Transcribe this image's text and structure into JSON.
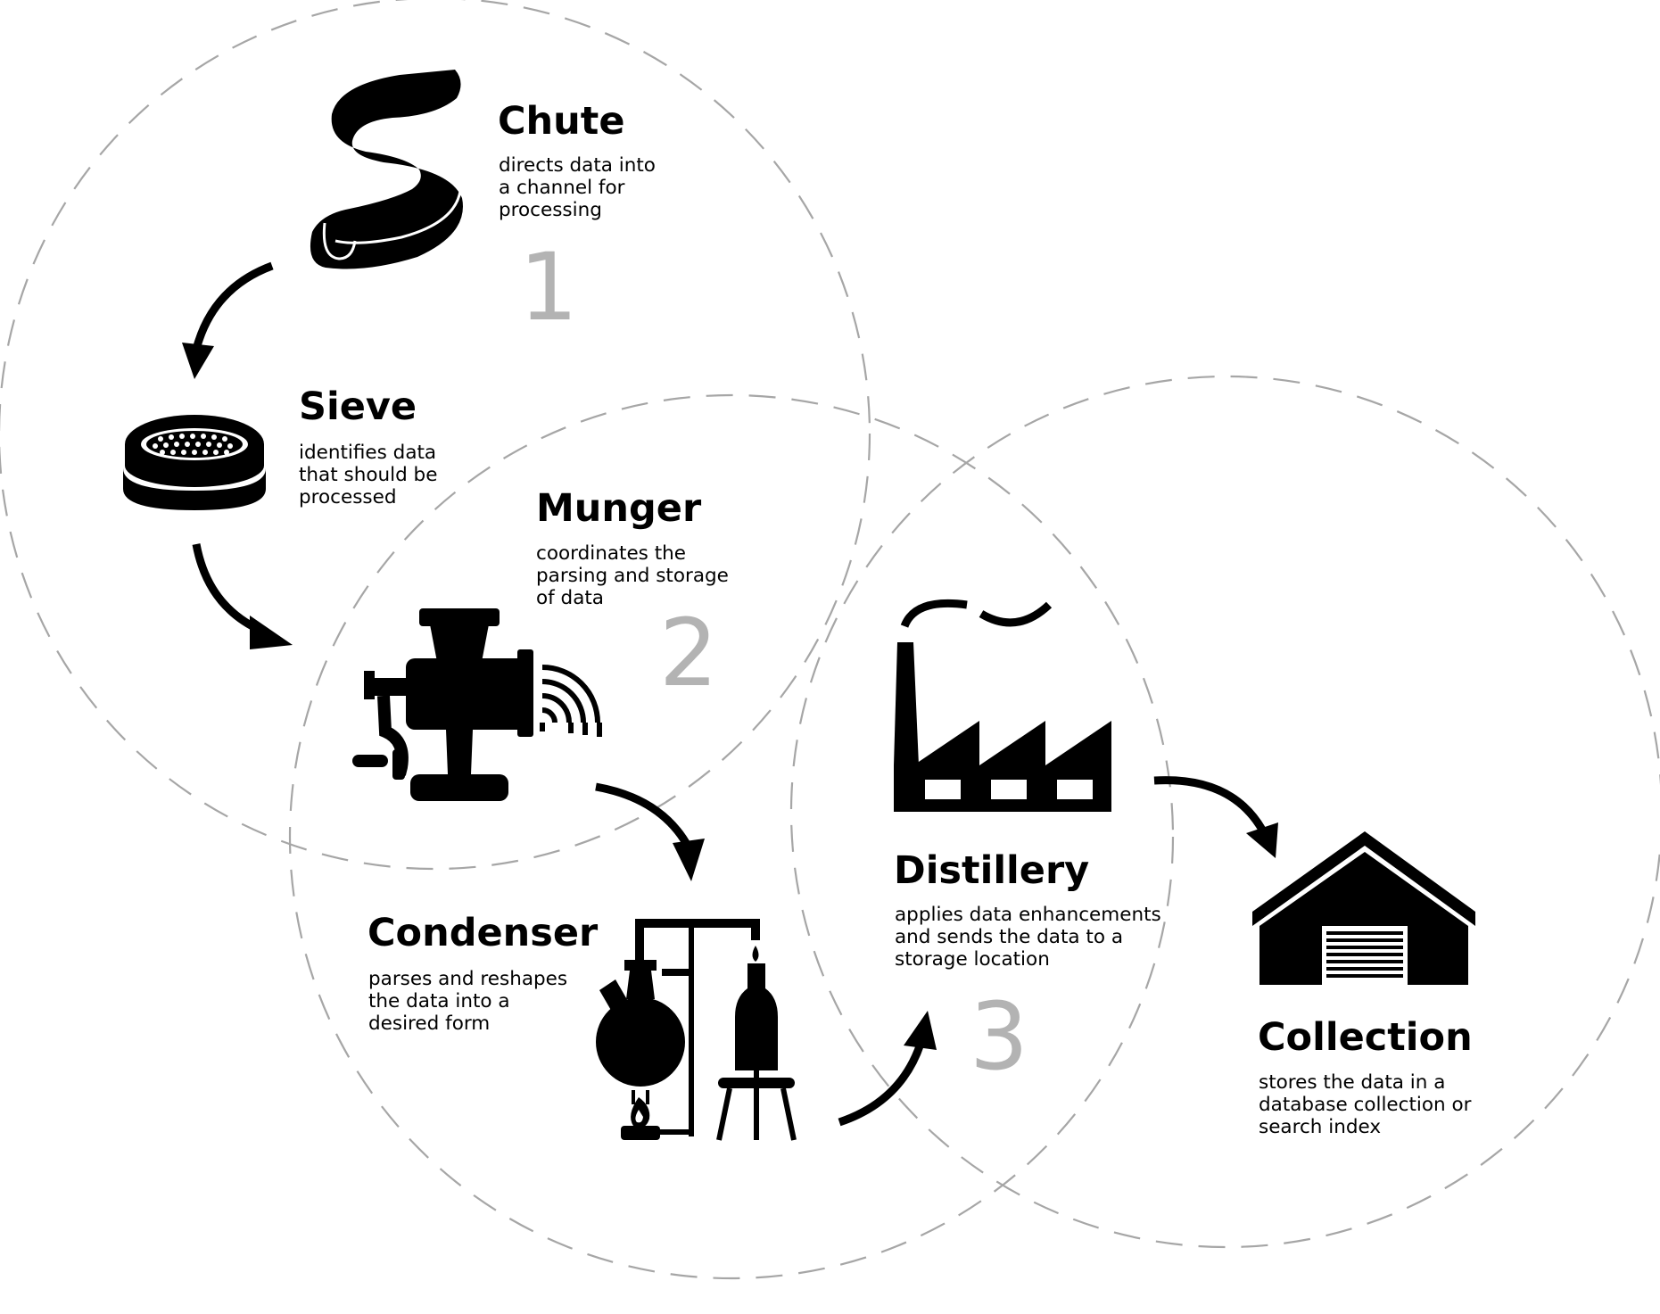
{
  "stages": [
    {
      "id": "chute",
      "title": "Chute",
      "desc": [
        "directs data into",
        "a channel for",
        "processing"
      ]
    },
    {
      "id": "sieve",
      "title": "Sieve",
      "desc": [
        "identifies data",
        "that should be",
        "processed"
      ]
    },
    {
      "id": "munger",
      "title": "Munger",
      "desc": [
        "coordinates the",
        "parsing and storage",
        "of data"
      ]
    },
    {
      "id": "condenser",
      "title": "Condenser",
      "desc": [
        "parses and reshapes",
        "the data into a",
        "desired form"
      ]
    },
    {
      "id": "distillery",
      "title": "Distillery",
      "desc": [
        "applies data enhancements",
        "and sends the data to a",
        "storage location"
      ]
    },
    {
      "id": "collection",
      "title": "Collection",
      "desc": [
        "stores the data in a",
        "database collection or",
        "search index"
      ]
    }
  ],
  "phases": [
    "1",
    "2",
    "3"
  ],
  "icons": {
    "chute": "chute-icon",
    "sieve": "sieve-icon",
    "munger": "meat-grinder-icon",
    "condenser": "distillation-apparatus-icon",
    "distillery": "factory-icon",
    "collection": "warehouse-icon"
  },
  "colors": {
    "ink": "#000000",
    "ring": "#a6a6a6",
    "phase_number": "#b3b3b3",
    "background": "#ffffff"
  }
}
